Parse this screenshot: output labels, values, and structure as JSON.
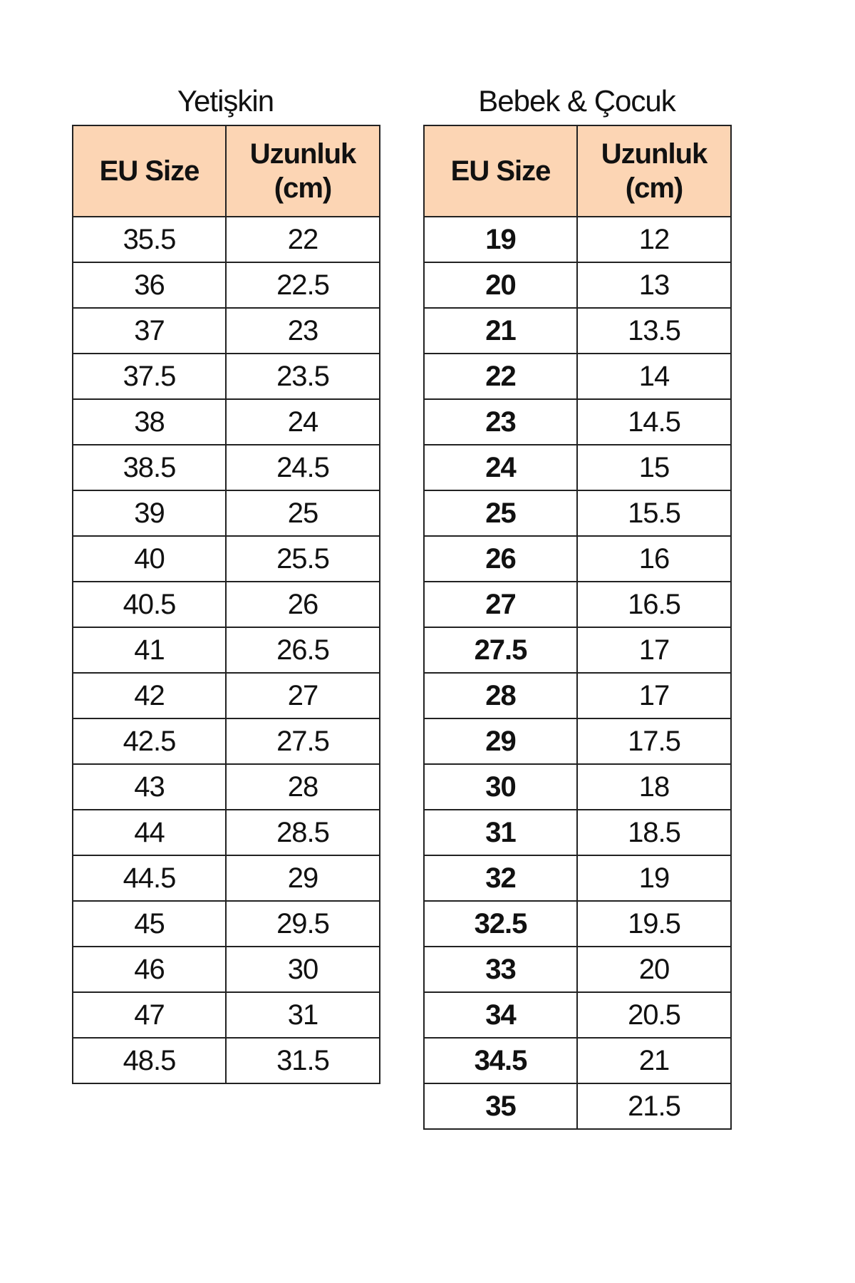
{
  "tables": [
    {
      "title": "Yetişkin",
      "headers": [
        "EU Size",
        "Uzunluk (cm)"
      ],
      "rows": [
        [
          "35.5",
          "22"
        ],
        [
          "36",
          "22.5"
        ],
        [
          "37",
          "23"
        ],
        [
          "37.5",
          "23.5"
        ],
        [
          "38",
          "24"
        ],
        [
          "38.5",
          "24.5"
        ],
        [
          "39",
          "25"
        ],
        [
          "40",
          "25.5"
        ],
        [
          "40.5",
          "26"
        ],
        [
          "41",
          "26.5"
        ],
        [
          "42",
          "27"
        ],
        [
          "42.5",
          "27.5"
        ],
        [
          "43",
          "28"
        ],
        [
          "44",
          "28.5"
        ],
        [
          "44.5",
          "29"
        ],
        [
          "45",
          "29.5"
        ],
        [
          "46",
          "30"
        ],
        [
          "47",
          "31"
        ],
        [
          "48.5",
          "31.5"
        ]
      ]
    },
    {
      "title": "Bebek & Çocuk",
      "headers": [
        "EU Size",
        "Uzunluk (cm)"
      ],
      "rows": [
        [
          "19",
          "12"
        ],
        [
          "20",
          "13"
        ],
        [
          "21",
          "13.5"
        ],
        [
          "22",
          "14"
        ],
        [
          "23",
          "14.5"
        ],
        [
          "24",
          "15"
        ],
        [
          "25",
          "15.5"
        ],
        [
          "26",
          "16"
        ],
        [
          "27",
          "16.5"
        ],
        [
          "27.5",
          "17"
        ],
        [
          "28",
          "17"
        ],
        [
          "29",
          "17.5"
        ],
        [
          "30",
          "18"
        ],
        [
          "31",
          "18.5"
        ],
        [
          "32",
          "19"
        ],
        [
          "32.5",
          "19.5"
        ],
        [
          "33",
          "20"
        ],
        [
          "34",
          "20.5"
        ],
        [
          "34.5",
          "21"
        ],
        [
          "35",
          "21.5"
        ]
      ]
    }
  ],
  "colors": {
    "header_bg": "#fcd5b4",
    "border": "#222222"
  }
}
